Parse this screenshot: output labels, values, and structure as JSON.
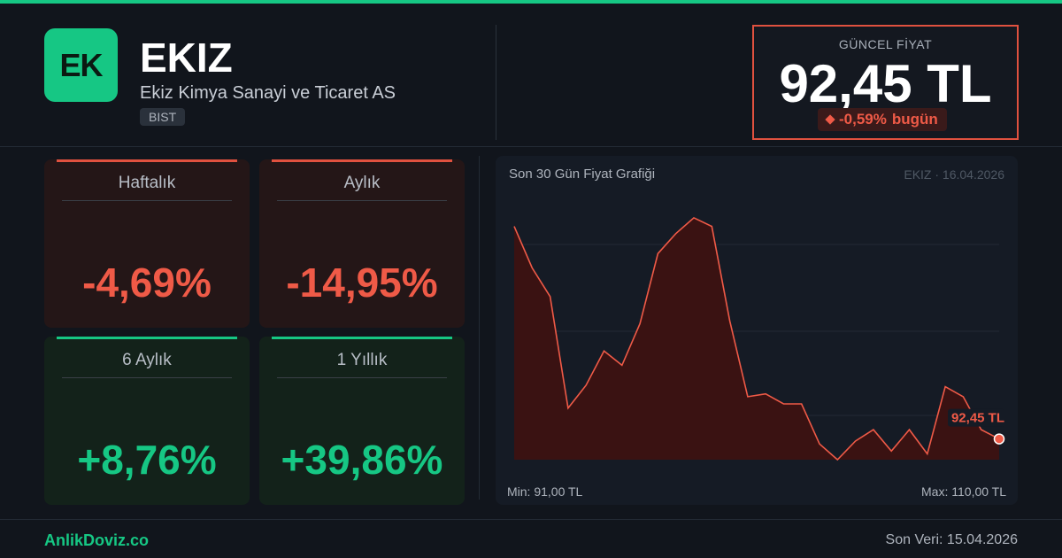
{
  "header": {
    "logo_text": "EK",
    "ticker": "EKIZ",
    "company": "Ekiz Kimya Sanayi ve Ticaret AS",
    "exchange": "BIST"
  },
  "price": {
    "label": "GÜNCEL FİYAT",
    "value": "92,45 TL",
    "change": "-0,59%",
    "change_suffix": "bugün",
    "color": "#e0513f"
  },
  "cards": [
    {
      "title": "Haftalık",
      "value": "-4,69%",
      "trend": "negative"
    },
    {
      "title": "Aylık",
      "value": "-14,95%",
      "trend": "negative"
    },
    {
      "title": "6 Aylık",
      "value": "+8,76%",
      "trend": "positive"
    },
    {
      "title": "1 Yıllık",
      "value": "+39,86%",
      "trend": "positive"
    }
  ],
  "chart_data": {
    "type": "area",
    "title": "Son 30 Gün Fiyat Grafiği",
    "subtitle": "EKIZ · 16.04.2026",
    "min_label": "Min: 91,00 TL",
    "max_label": "Max: 110,00 TL",
    "last_label": "92,45 TL",
    "ylim": [
      91,
      110
    ],
    "grid": true,
    "values": [
      107.3,
      104.4,
      102.4,
      94.6,
      96.2,
      98.6,
      97.6,
      100.5,
      105.4,
      106.8,
      107.9,
      107.3,
      100.7,
      95.4,
      95.6,
      94.9,
      94.9,
      92.1,
      91.0,
      92.3,
      93.1,
      91.6,
      93.1,
      91.4,
      96.1,
      95.4,
      93.1,
      92.45
    ],
    "line_color": "#ef5a47",
    "fill_color": "#3a1212"
  },
  "footer": {
    "brand": "AnlikDoviz.co",
    "last_data": "Son Veri: 15.04.2026"
  },
  "colors": {
    "accent": "#16c784",
    "negative": "#ef5a47"
  }
}
